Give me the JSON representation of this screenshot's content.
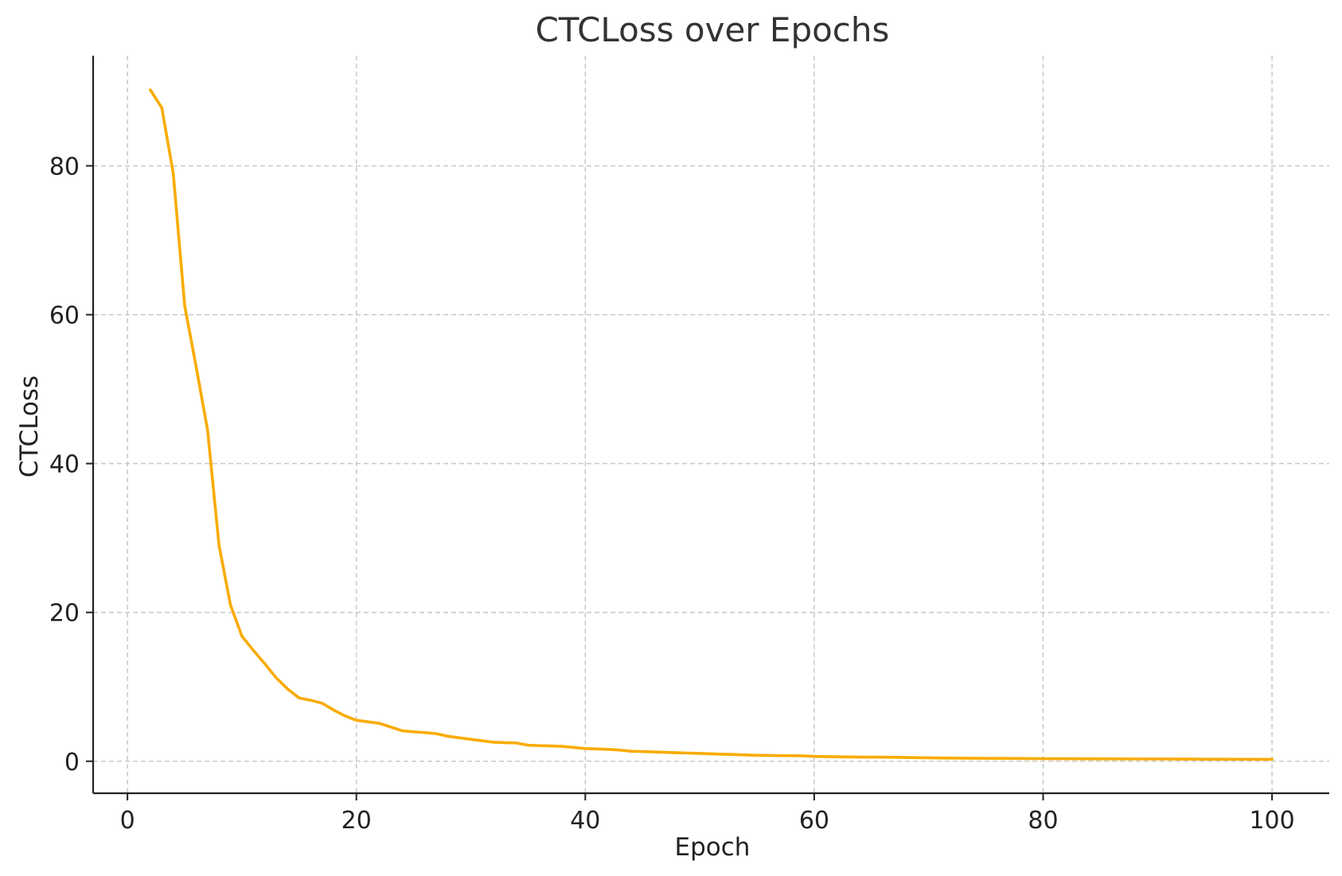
{
  "chart_data": {
    "type": "line",
    "title": "CTCLoss over Epochs",
    "xlabel": "Epoch",
    "ylabel": "CTCLoss",
    "xlim": [
      -3,
      105
    ],
    "ylim": [
      -4.3,
      94.8
    ],
    "x_ticks": [
      0,
      20,
      40,
      60,
      80,
      100
    ],
    "y_ticks": [
      0,
      20,
      40,
      60,
      80
    ],
    "grid": true,
    "legend": "none",
    "series": [
      {
        "color": "#f9ab00",
        "x": [
          2,
          3,
          4,
          5,
          6,
          7,
          8,
          9,
          10,
          11,
          12,
          13,
          14,
          15,
          16,
          17,
          18,
          19,
          20,
          21,
          22,
          23,
          24,
          25,
          26,
          27,
          28,
          29,
          30,
          31,
          32,
          33,
          34,
          35,
          36,
          37,
          38,
          39,
          40,
          41,
          42,
          43,
          44,
          45,
          46,
          47,
          48,
          49,
          50,
          51,
          52,
          53,
          54,
          55,
          56,
          57,
          58,
          59,
          60,
          61,
          62,
          63,
          64,
          65,
          66,
          67,
          68,
          69,
          70,
          71,
          72,
          73,
          74,
          75,
          76,
          77,
          78,
          79,
          80,
          81,
          82,
          83,
          84,
          85,
          86,
          87,
          88,
          89,
          90,
          91,
          92,
          93,
          94,
          95,
          96,
          97,
          98,
          99,
          100
        ],
        "y": [
          90.2,
          87.8,
          79.0,
          61.2,
          53.0,
          44.5,
          29.0,
          21.0,
          16.8,
          14.9,
          13.1,
          11.2,
          9.7,
          8.5,
          8.2,
          7.8,
          6.9,
          6.1,
          5.5,
          5.3,
          5.1,
          4.6,
          4.1,
          3.95,
          3.85,
          3.7,
          3.35,
          3.15,
          2.95,
          2.75,
          2.55,
          2.5,
          2.45,
          2.15,
          2.1,
          2.05,
          2.0,
          1.85,
          1.7,
          1.65,
          1.6,
          1.5,
          1.35,
          1.3,
          1.25,
          1.2,
          1.15,
          1.1,
          1.05,
          1.0,
          0.95,
          0.9,
          0.85,
          0.8,
          0.78,
          0.75,
          0.74,
          0.73,
          0.65,
          0.62,
          0.6,
          0.58,
          0.56,
          0.55,
          0.54,
          0.53,
          0.5,
          0.48,
          0.46,
          0.44,
          0.42,
          0.41,
          0.4,
          0.39,
          0.38,
          0.38,
          0.37,
          0.36,
          0.35,
          0.34,
          0.34,
          0.33,
          0.33,
          0.32,
          0.32,
          0.31,
          0.31,
          0.3,
          0.3,
          0.3,
          0.29,
          0.29,
          0.28,
          0.28,
          0.28,
          0.27,
          0.27,
          0.26,
          0.26
        ]
      }
    ]
  }
}
